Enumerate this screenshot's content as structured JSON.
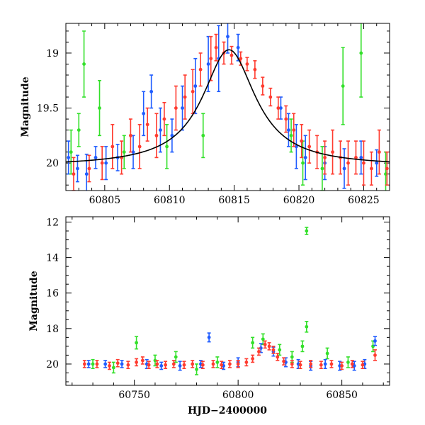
{
  "colors": {
    "red": "#ff3b2f",
    "blue": "#1f5cff",
    "green": "#33e02a",
    "model": "#000000"
  },
  "chart_data": [
    {
      "type": "scatter",
      "panel": "top",
      "ylabel": "Magnitude",
      "xlabel": "",
      "xlim": [
        60802,
        60827
      ],
      "ylim": [
        20.25,
        18.73
      ],
      "y_inverted": true,
      "xticks": [
        60805,
        60810,
        60815,
        60820,
        60825
      ],
      "xtick_labels": [
        "60805",
        "60810",
        "60815",
        "60820",
        "60825"
      ],
      "yticks": [
        19,
        19.5,
        20
      ],
      "ytick_labels": [
        "19",
        "19.5",
        "20"
      ],
      "model_curve": {
        "peak_x": 60814.6,
        "peak_mag": 18.97,
        "base_mag": 20.03,
        "width": 2.5,
        "x": [
          60802,
          60804,
          60806,
          60808,
          60810,
          60812,
          60813,
          60814,
          60814.6,
          60815,
          60816,
          60817,
          60818,
          60820,
          60822,
          60824,
          60827
        ],
        "y": [
          20.0,
          19.98,
          19.94,
          19.87,
          19.72,
          19.42,
          19.2,
          19.02,
          18.97,
          18.99,
          19.12,
          19.33,
          19.54,
          19.8,
          19.92,
          19.97,
          20.01
        ]
      },
      "series": [
        {
          "color": "#1f5cff",
          "points": [
            [
              60802.2,
              19.95,
              0.15
            ],
            [
              60802.9,
              20.05,
              0.12
            ],
            [
              60803.6,
              20.1,
              0.18
            ],
            [
              60804.3,
              19.95,
              0.1
            ],
            [
              60805.1,
              20.0,
              0.15
            ],
            [
              60806.0,
              19.95,
              0.12
            ],
            [
              60807.2,
              19.9,
              0.15
            ],
            [
              60808.0,
              19.55,
              0.2
            ],
            [
              60808.6,
              19.35,
              0.15
            ],
            [
              60809.3,
              19.7,
              0.2
            ],
            [
              60810.2,
              19.75,
              0.15
            ],
            [
              60811.0,
              19.5,
              0.2
            ],
            [
              60812.0,
              19.3,
              0.25
            ],
            [
              60813.0,
              19.1,
              0.25
            ],
            [
              60813.8,
              19.05,
              0.3
            ],
            [
              60814.5,
              18.85,
              0.15
            ],
            [
              60815.3,
              18.95,
              0.12
            ],
            [
              60818.6,
              19.5,
              0.1
            ],
            [
              60819.2,
              19.7,
              0.15
            ],
            [
              60819.8,
              19.85,
              0.2
            ],
            [
              60820.5,
              19.95,
              0.2
            ],
            [
              60822.0,
              20.0,
              0.15
            ],
            [
              60823.5,
              20.05,
              0.18
            ],
            [
              60824.8,
              19.95,
              0.15
            ],
            [
              60826.0,
              20.0,
              0.12
            ]
          ]
        },
        {
          "color": "#33e02a",
          "points": [
            [
              60802.4,
              19.9,
              0.2
            ],
            [
              60803.0,
              19.7,
              0.15
            ],
            [
              60803.4,
              19.1,
              0.3
            ],
            [
              60804.6,
              19.5,
              0.25
            ],
            [
              60806.5,
              19.9,
              0.15
            ],
            [
              60809.8,
              19.85,
              0.2
            ],
            [
              60812.6,
              19.75,
              0.2
            ],
            [
              60819.4,
              19.75,
              0.15
            ],
            [
              60820.3,
              20.0,
              0.2
            ],
            [
              60821.8,
              20.05,
              0.2
            ],
            [
              60823.4,
              19.3,
              0.35
            ],
            [
              60824.8,
              19.0,
              0.4
            ],
            [
              60826.7,
              20.1,
              0.2
            ]
          ]
        },
        {
          "color": "#ff3b2f",
          "points": [
            [
              60802.6,
              20.1,
              0.15
            ],
            [
              60803.8,
              20.05,
              0.12
            ],
            [
              60804.8,
              20.0,
              0.15
            ],
            [
              60805.6,
              19.85,
              0.2
            ],
            [
              60806.3,
              19.95,
              0.15
            ],
            [
              60807.0,
              19.75,
              0.15
            ],
            [
              60807.7,
              19.85,
              0.2
            ],
            [
              60808.3,
              19.65,
              0.15
            ],
            [
              60809.0,
              19.75,
              0.2
            ],
            [
              60809.6,
              19.6,
              0.15
            ],
            [
              60810.5,
              19.5,
              0.2
            ],
            [
              60811.2,
              19.4,
              0.2
            ],
            [
              60811.8,
              19.35,
              0.2
            ],
            [
              60812.4,
              19.15,
              0.15
            ],
            [
              60813.2,
              19.05,
              0.2
            ],
            [
              60813.6,
              18.95,
              0.12
            ],
            [
              60814.2,
              19.0,
              0.1
            ],
            [
              60814.8,
              19.02,
              0.08
            ],
            [
              60815.5,
              19.05,
              0.06
            ],
            [
              60816.0,
              19.1,
              0.06
            ],
            [
              60816.6,
              19.15,
              0.08
            ],
            [
              60817.2,
              19.3,
              0.08
            ],
            [
              60817.8,
              19.4,
              0.08
            ],
            [
              60818.4,
              19.5,
              0.1
            ],
            [
              60819.0,
              19.6,
              0.12
            ],
            [
              60819.6,
              19.7,
              0.15
            ],
            [
              60820.2,
              19.8,
              0.15
            ],
            [
              60820.8,
              19.85,
              0.15
            ],
            [
              60821.4,
              19.9,
              0.15
            ],
            [
              60822.0,
              19.95,
              0.15
            ],
            [
              60822.6,
              19.9,
              0.2
            ],
            [
              60823.2,
              19.95,
              0.15
            ],
            [
              60823.8,
              20.0,
              0.2
            ],
            [
              60824.4,
              19.95,
              0.15
            ],
            [
              60825.0,
              20.0,
              0.2
            ],
            [
              60825.6,
              20.05,
              0.15
            ],
            [
              60826.2,
              19.9,
              0.2
            ],
            [
              60826.8,
              20.05,
              0.15
            ]
          ]
        }
      ]
    },
    {
      "type": "scatter",
      "panel": "bottom",
      "ylabel": "Magnitude",
      "xlabel": "HJD−2400000",
      "xlim": [
        60717,
        60873
      ],
      "ylim": [
        21.2,
        11.7
      ],
      "y_inverted": true,
      "xticks": [
        60750,
        60800,
        60850
      ],
      "xtick_labels": [
        "60750",
        "60800",
        "60850"
      ],
      "yticks": [
        12,
        14,
        16,
        18,
        20
      ],
      "ytick_labels": [
        "12",
        "14",
        "16",
        "18",
        "20"
      ],
      "series": [
        {
          "color": "#33e02a",
          "points": [
            [
              60730,
              20.0,
              0.25
            ],
            [
              60740,
              20.2,
              0.3
            ],
            [
              60751,
              18.8,
              0.35
            ],
            [
              60760,
              19.8,
              0.3
            ],
            [
              60770,
              19.6,
              0.3
            ],
            [
              60780,
              20.3,
              0.3
            ],
            [
              60790,
              19.9,
              0.3
            ],
            [
              60807,
              18.8,
              0.3
            ],
            [
              60812,
              18.6,
              0.3
            ],
            [
              60820,
              19.2,
              0.3
            ],
            [
              60826,
              19.6,
              0.3
            ],
            [
              60831,
              19.0,
              0.3
            ],
            [
              60833,
              12.5,
              0.2
            ],
            [
              60833,
              17.9,
              0.3
            ],
            [
              60843,
              19.4,
              0.3
            ],
            [
              60853,
              19.9,
              0.3
            ],
            [
              60865,
              19.0,
              0.3
            ]
          ]
        },
        {
          "color": "#1f5cff",
          "points": [
            [
              60728,
              20.0,
              0.2
            ],
            [
              60736,
              20.0,
              0.2
            ],
            [
              60744,
              20.0,
              0.2
            ],
            [
              60756,
              20.0,
              0.25
            ],
            [
              60763,
              20.1,
              0.2
            ],
            [
              60772,
              20.1,
              0.25
            ],
            [
              60782,
              20.0,
              0.2
            ],
            [
              60786,
              18.5,
              0.25
            ],
            [
              60793,
              20.1,
              0.2
            ],
            [
              60800,
              19.9,
              0.25
            ],
            [
              60811,
              19.1,
              0.25
            ],
            [
              60817,
              19.3,
              0.25
            ],
            [
              60823,
              19.9,
              0.25
            ],
            [
              60829,
              20.0,
              0.25
            ],
            [
              60835,
              20.1,
              0.25
            ],
            [
              60842,
              20.0,
              0.25
            ],
            [
              60849,
              20.1,
              0.25
            ],
            [
              60856,
              20.1,
              0.25
            ],
            [
              60861,
              20.0,
              0.25
            ],
            [
              60866,
              18.7,
              0.25
            ]
          ]
        },
        {
          "color": "#ff3b2f",
          "points": [
            [
              60726,
              20.0,
              0.2
            ],
            [
              60732,
              20.0,
              0.2
            ],
            [
              60738,
              20.1,
              0.2
            ],
            [
              60742,
              19.95,
              0.2
            ],
            [
              60747,
              20.05,
              0.2
            ],
            [
              60751,
              19.9,
              0.2
            ],
            [
              60754,
              19.8,
              0.2
            ],
            [
              60757,
              20.05,
              0.2
            ],
            [
              60761,
              20.0,
              0.2
            ],
            [
              60765,
              20.05,
              0.2
            ],
            [
              60769,
              20.0,
              0.2
            ],
            [
              60774,
              20.05,
              0.2
            ],
            [
              60778,
              20.0,
              0.2
            ],
            [
              60783,
              20.05,
              0.2
            ],
            [
              60788,
              20.0,
              0.2
            ],
            [
              60792,
              20.05,
              0.2
            ],
            [
              60796,
              20.0,
              0.2
            ],
            [
              60800,
              20.0,
              0.2
            ],
            [
              60804,
              19.9,
              0.2
            ],
            [
              60807,
              19.7,
              0.2
            ],
            [
              60810,
              19.3,
              0.2
            ],
            [
              60813,
              18.9,
              0.2
            ],
            [
              60815,
              19.0,
              0.2
            ],
            [
              60817,
              19.2,
              0.2
            ],
            [
              60819,
              19.6,
              0.2
            ],
            [
              60822,
              19.85,
              0.2
            ],
            [
              60826,
              20.0,
              0.2
            ],
            [
              60830,
              20.05,
              0.2
            ],
            [
              60835,
              20.0,
              0.2
            ],
            [
              60840,
              20.05,
              0.2
            ],
            [
              60845,
              20.0,
              0.2
            ],
            [
              60850,
              20.1,
              0.2
            ],
            [
              60855,
              20.0,
              0.2
            ],
            [
              60860,
              20.05,
              0.2
            ],
            [
              60866,
              19.5,
              0.3
            ]
          ]
        }
      ]
    }
  ]
}
